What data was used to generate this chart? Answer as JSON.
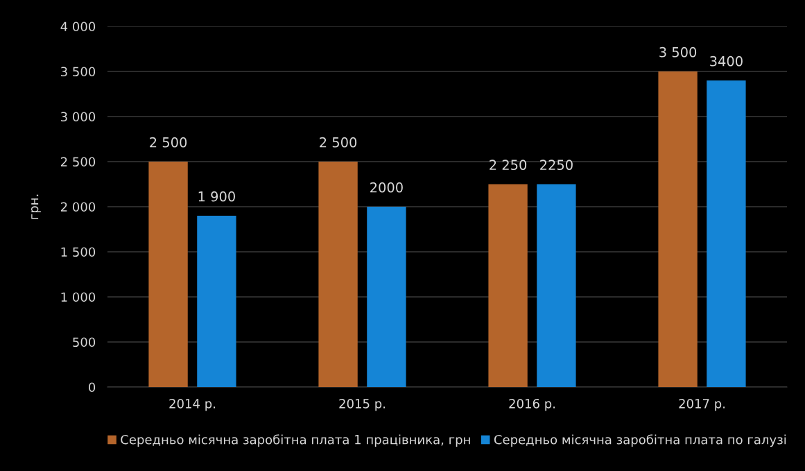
{
  "chart_data": {
    "type": "bar",
    "ylabel": "грн.",
    "categories": [
      "2014 р.",
      "2015 р.",
      "2016 р.",
      "2017 р."
    ],
    "series": [
      {
        "name": "Середньо місячна заробітна плата 1 працівника, грн",
        "color": "#b5652b",
        "values": [
          2500,
          2500,
          2250,
          3500
        ],
        "value_labels": [
          "2 500",
          "2 500",
          "2 250",
          "3 500"
        ]
      },
      {
        "name": "Середньо місячна заробітна плата по галузі",
        "color": "#1585d6",
        "values": [
          1900,
          2000,
          2250,
          3400
        ],
        "value_labels": [
          "1 900",
          "2000",
          "2250",
          "3400"
        ]
      }
    ],
    "ylim": [
      0,
      4000
    ],
    "yticks": [
      {
        "value": 0,
        "label": "0"
      },
      {
        "value": 500,
        "label": "500"
      },
      {
        "value": 1000,
        "label": "1 000"
      },
      {
        "value": 1500,
        "label": "1 500"
      },
      {
        "value": 2000,
        "label": "2 000"
      },
      {
        "value": 2500,
        "label": "2 500"
      },
      {
        "value": 3000,
        "label": "3 000"
      },
      {
        "value": 3500,
        "label": "3 500"
      },
      {
        "value": 4000,
        "label": "4 000"
      }
    ],
    "grid": "y",
    "legend": "bottom"
  }
}
